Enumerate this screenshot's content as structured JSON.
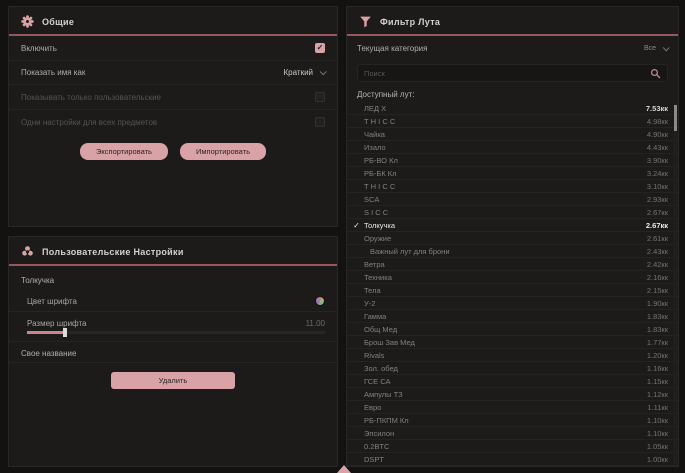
{
  "colors": {
    "accent": "#d9a2a7",
    "underline": "#96585d"
  },
  "general": {
    "title": "Общие",
    "enable_label": "Включить",
    "enable_checked": true,
    "name_mode_label": "Показать имя как",
    "name_mode_value": "Краткий",
    "only_custom_label": "Показывать только пользовательские",
    "only_custom_checked": false,
    "same_settings_label": "Одни настройки для всех предметов",
    "same_settings_checked": false,
    "export_label": "Экспортировать",
    "import_label": "Импортировать"
  },
  "user_settings": {
    "title": "Пользовательские Настройки",
    "item_name": "Толкучка",
    "font_color_label": "Цвет шрифта",
    "font_size_label": "Размер шрифта",
    "font_size_value": "11.00",
    "font_size_percent": 12,
    "custom_name_label": "Свое название",
    "delete_label": "Удалить"
  },
  "loot_filter": {
    "title": "Фильтр Лута",
    "category_label": "Текущая категория",
    "category_value": "Все",
    "search_placeholder": "Поиск",
    "available_label": "Доступный лут:",
    "items": [
      {
        "name": "ЛЕД X",
        "value": "7.53кк",
        "bright": true
      },
      {
        "name": "Т Н I С С",
        "value": "4.98кк"
      },
      {
        "name": "Чайка",
        "value": "4.90кк"
      },
      {
        "name": "Изало",
        "value": "4.43кк"
      },
      {
        "name": "РБ-ВО Кл",
        "value": "3.90кк"
      },
      {
        "name": "РБ-БК Кл",
        "value": "3.24кк"
      },
      {
        "name": "Т Н I С С",
        "value": "3.10кк"
      },
      {
        "name": "SCA",
        "value": "2.93кк"
      },
      {
        "name": "S I C C",
        "value": "2.67кк"
      },
      {
        "name": "Толкучка",
        "value": "2.67кк",
        "selected": true
      },
      {
        "name": "Оружие",
        "value": "2.61кк"
      },
      {
        "name": "Важный лут для брони",
        "value": "2.43кк",
        "indent": true
      },
      {
        "name": "Ветра",
        "value": "2.42кк"
      },
      {
        "name": "Техника",
        "value": "2.16кк"
      },
      {
        "name": "Тела",
        "value": "2.15кк"
      },
      {
        "name": "У-2",
        "value": "1.90кк"
      },
      {
        "name": "Гамма",
        "value": "1.83кк"
      },
      {
        "name": "Общ Мед",
        "value": "1.83кк"
      },
      {
        "name": "Брош Зав Мед",
        "value": "1.77кк"
      },
      {
        "name": "Rivals",
        "value": "1.20кк"
      },
      {
        "name": "Зол. обед",
        "value": "1.16кк"
      },
      {
        "name": "ГСЕ СА",
        "value": "1.15кк"
      },
      {
        "name": "Ампулы ТЗ",
        "value": "1.12кк"
      },
      {
        "name": "Евро",
        "value": "1.11кк"
      },
      {
        "name": "РБ-ПКПМ Кл",
        "value": "1.10кк"
      },
      {
        "name": "Эпсилон",
        "value": "1.10кк"
      },
      {
        "name": "0.2BTC",
        "value": "1.05кк"
      },
      {
        "name": "DSPT",
        "value": "1.00кк"
      }
    ]
  }
}
